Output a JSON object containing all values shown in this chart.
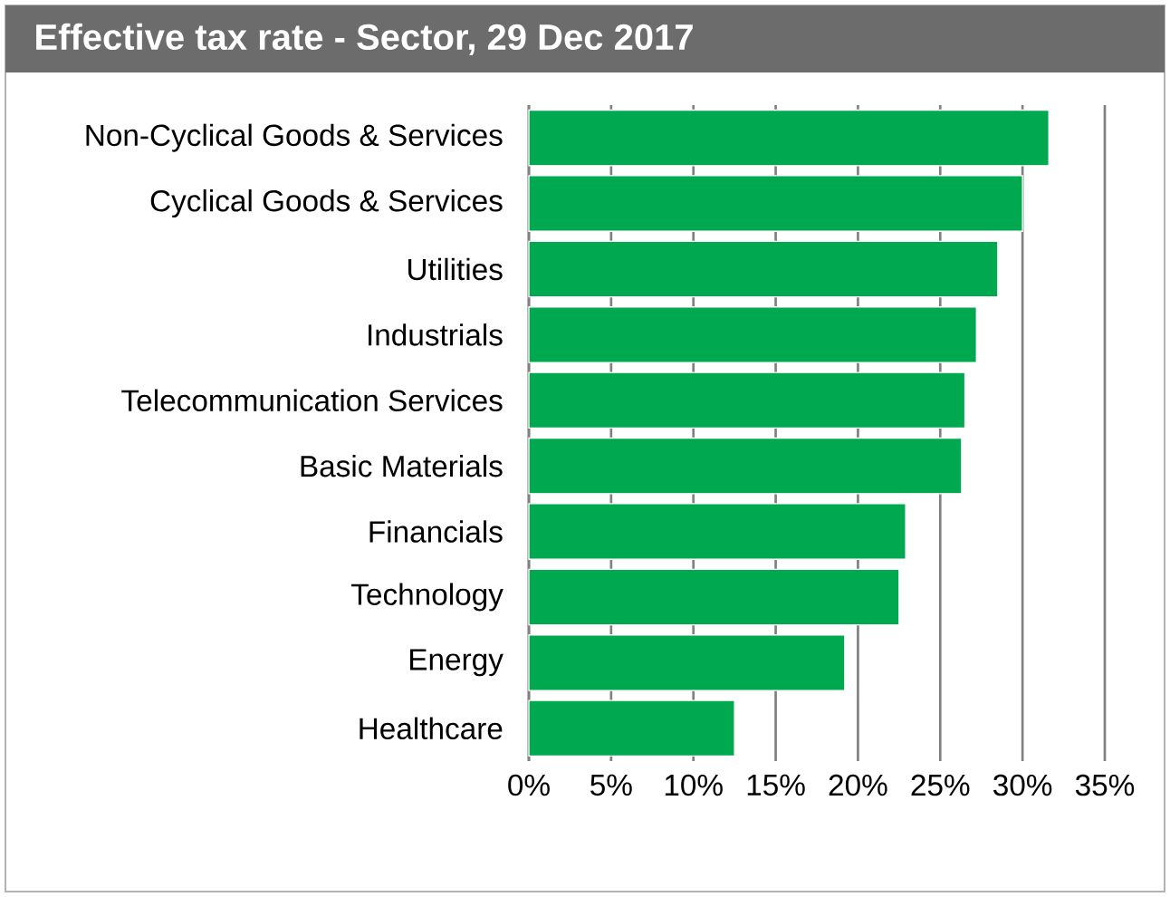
{
  "chart_data": {
    "type": "bar",
    "orientation": "horizontal",
    "title": "Effective tax rate - Sector, 29 Dec 2017",
    "categories": [
      "Non-Cyclical Goods & Services",
      "Cyclical Goods & Services",
      "Utilities",
      "Industrials",
      "Telecommunication Services",
      "Basic Materials",
      "Financials",
      "Technology",
      "Energy",
      "Healthcare"
    ],
    "values": [
      31.6,
      30.0,
      28.5,
      27.2,
      26.5,
      26.3,
      22.9,
      22.5,
      19.2,
      12.5
    ],
    "color": "#00a84f",
    "xlim": [
      0,
      35
    ],
    "xticks": [
      {
        "value": 0,
        "label": "0%"
      },
      {
        "value": 5,
        "label": "5%"
      },
      {
        "value": 10,
        "label": "10%"
      },
      {
        "value": 15,
        "label": "15%"
      },
      {
        "value": 20,
        "label": "20%"
      },
      {
        "value": 25,
        "label": "25%"
      },
      {
        "value": 30,
        "label": "30%"
      },
      {
        "value": 35,
        "label": "35%"
      }
    ],
    "grid": "x"
  }
}
